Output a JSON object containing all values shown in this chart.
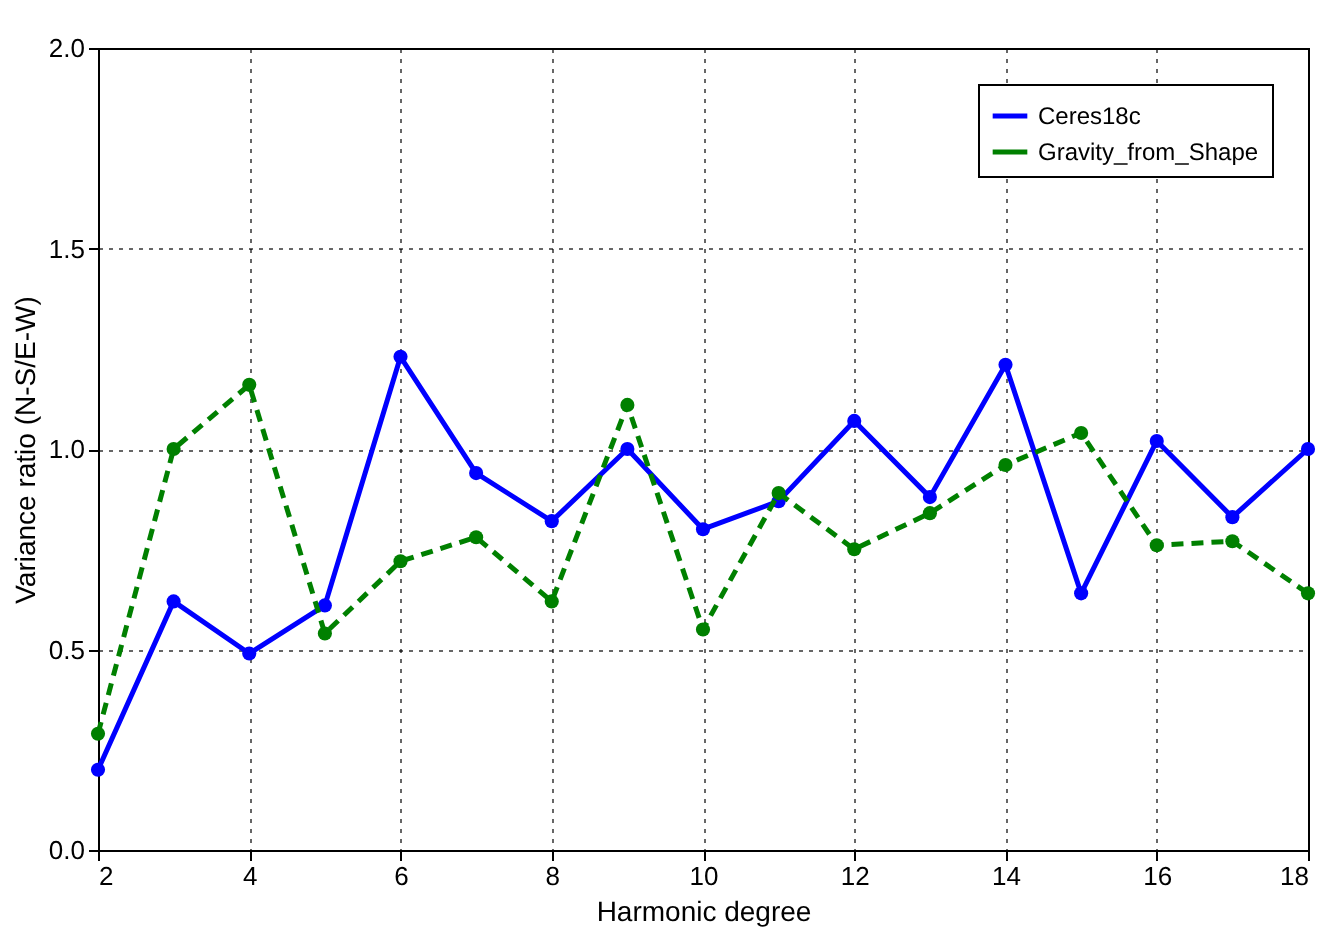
{
  "chart_data": {
    "type": "line",
    "xlabel": "Harmonic degree",
    "ylabel": "Variance ratio (N-S/E-W)",
    "x": [
      2,
      3,
      4,
      5,
      6,
      7,
      8,
      9,
      10,
      11,
      12,
      13,
      14,
      15,
      16,
      17,
      18
    ],
    "series": [
      {
        "name": "Ceres18c",
        "color": "#0000ff",
        "line_style": "solid",
        "values": [
          0.2,
          0.62,
          0.49,
          0.61,
          1.23,
          0.94,
          0.82,
          1.0,
          0.8,
          0.87,
          1.07,
          0.88,
          1.21,
          0.64,
          1.02,
          0.83,
          1.0
        ]
      },
      {
        "name": "Gravity_from_Shape",
        "color": "#008000",
        "line_style": "dashed",
        "values": [
          0.29,
          1.0,
          1.16,
          0.54,
          0.72,
          0.78,
          0.62,
          1.11,
          0.55,
          0.89,
          0.75,
          0.84,
          0.96,
          1.04,
          0.76,
          0.77,
          0.64
        ]
      }
    ],
    "xlim": [
      2,
      18
    ],
    "xticks": [
      2,
      4,
      6,
      8,
      10,
      12,
      14,
      16,
      18
    ],
    "ylim": [
      0,
      2
    ],
    "yticks": [
      {
        "value": 0,
        "label": "0.0"
      },
      0.5,
      {
        "value": 1,
        "label": "1.0"
      },
      1.5,
      {
        "value": 2,
        "label": "2.0"
      }
    ],
    "grid": true,
    "legend": "top right",
    "marker": "circle"
  }
}
